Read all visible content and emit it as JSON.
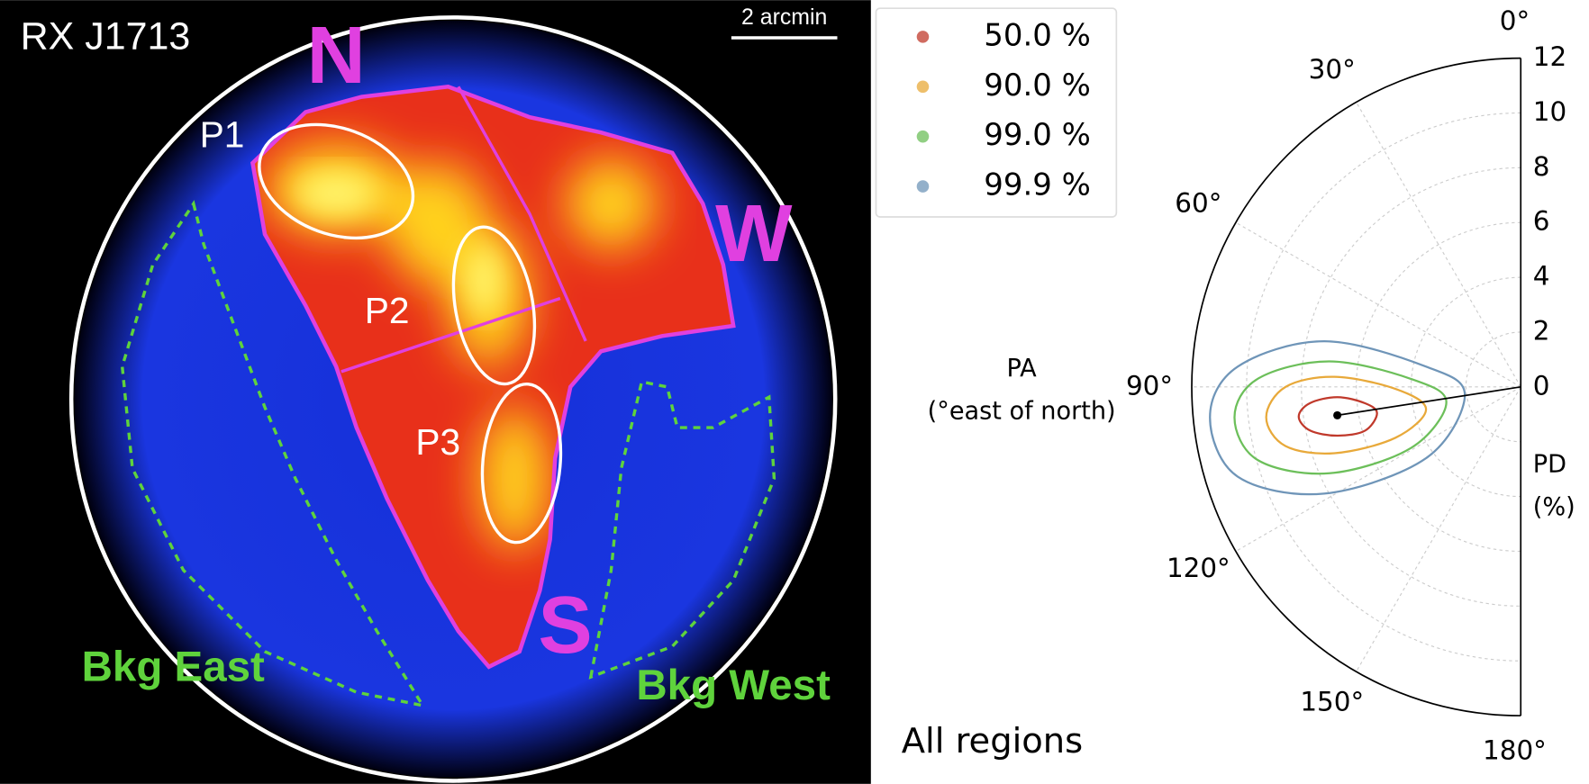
{
  "image": {
    "title": "RX J1713",
    "scale_bar": "2 arcmin",
    "directions": {
      "north": "N",
      "west": "W",
      "south": "S"
    },
    "regions": {
      "p1": "P1",
      "p2": "P2",
      "p3": "P3",
      "bkg_east": "Bkg East",
      "bkg_west": "Bkg West"
    }
  },
  "chart_data": {
    "type": "polar-contour",
    "theta_label": [
      "PA",
      "(°east of north)"
    ],
    "r_label": [
      "PD",
      "(%)"
    ],
    "annotation": "All regions",
    "thetalim": [
      0,
      180
    ],
    "thetaticks": [
      {
        "value": 0,
        "label": "0°"
      },
      {
        "value": 30,
        "label": "30°"
      },
      {
        "value": 60,
        "label": "60°"
      },
      {
        "value": 90,
        "label": "90°"
      },
      {
        "value": 120,
        "label": "120°"
      },
      {
        "value": 150,
        "label": "150°"
      },
      {
        "value": 180,
        "label": "180°"
      }
    ],
    "rlim": [
      0,
      12
    ],
    "rticks": [
      0,
      2,
      4,
      6,
      8,
      10,
      12
    ],
    "grid": true,
    "legend": "upper left",
    "best_fit": {
      "pa": 98.8,
      "pd": 6.77
    },
    "series": [
      {
        "name": "50.0 %",
        "color": "#c0392b",
        "pa": [
          97.6,
          94.4,
          93.2,
          96.0,
          100.4,
          105.7,
          104.9,
          101.7
        ],
        "pd": [
          8.17,
          7.71,
          6.7,
          5.71,
          5.33,
          5.9,
          6.92,
          7.85
        ]
      },
      {
        "name": "90.0 %",
        "color": "#e8a93a",
        "pa": [
          96.8,
          90.0,
          86.9,
          90.9,
          103.3,
          112.1,
          109.6,
          104.1
        ],
        "pd": [
          9.35,
          8.58,
          6.81,
          4.57,
          3.55,
          4.93,
          7.21,
          8.85
        ]
      },
      {
        "name": "99.0 %",
        "color": "#6cbf5a",
        "pa": [
          96.1,
          88.2,
          82.4,
          85.8,
          101.6,
          119.1,
          114.3,
          105.6
        ],
        "pd": [
          10.5,
          9.59,
          7.05,
          4.02,
          2.77,
          4.59,
          7.66,
          9.95
        ]
      },
      {
        "name": "99.9 %",
        "color": "#6f95b8",
        "pa": [
          95.6,
          85.9,
          76.9,
          77.9,
          98.3,
          127.0,
          118.5,
          107.6
        ],
        "pd": [
          11.39,
          10.35,
          7.36,
          3.53,
          2.06,
          4.32,
          8.16,
          10.83
        ]
      }
    ]
  }
}
